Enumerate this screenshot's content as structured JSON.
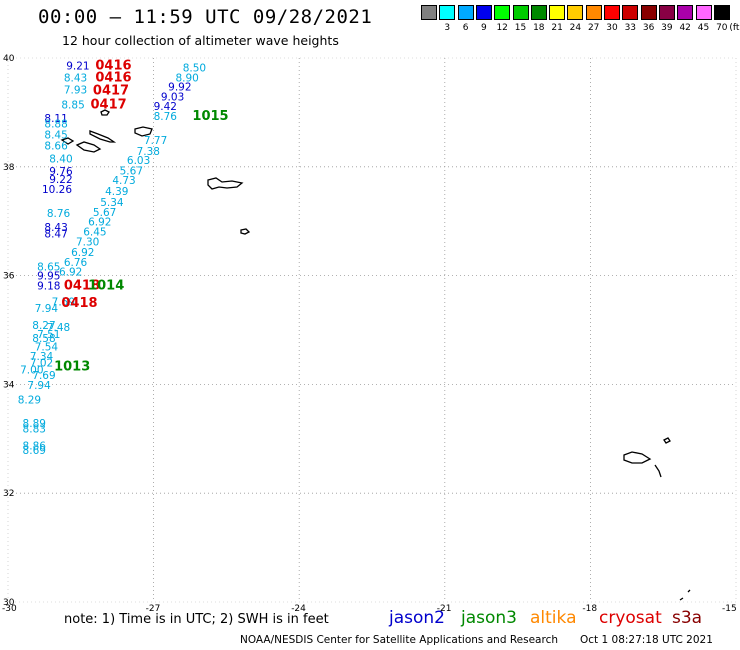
{
  "title": "00:00 – 11:59 UTC 09/28/2021",
  "subtitle": "12 hour collection of altimeter wave heights",
  "legend": {
    "unit": "(ft)",
    "items": [
      {
        "label": "",
        "color": "#808080"
      },
      {
        "label": "3",
        "color": "#00ffff"
      },
      {
        "label": "6",
        "color": "#00aaff"
      },
      {
        "label": "9",
        "color": "#0000ee"
      },
      {
        "label": "12",
        "color": "#00ff00"
      },
      {
        "label": "15",
        "color": "#00cc00"
      },
      {
        "label": "18",
        "color": "#008800"
      },
      {
        "label": "21",
        "color": "#ffff00"
      },
      {
        "label": "24",
        "color": "#ffcc00"
      },
      {
        "label": "27",
        "color": "#ff8800"
      },
      {
        "label": "30",
        "color": "#ff0000"
      },
      {
        "label": "33",
        "color": "#cc0000"
      },
      {
        "label": "36",
        "color": "#880000"
      },
      {
        "label": "39",
        "color": "#880044"
      },
      {
        "label": "42",
        "color": "#aa00aa"
      },
      {
        "label": "45",
        "color": "#ff66ff"
      },
      {
        "label": "70",
        "color": "#000000"
      }
    ]
  },
  "axes": {
    "lat_labels": [
      "40",
      "38",
      "36",
      "34",
      "32",
      "30"
    ],
    "lon_labels": [
      "-30",
      "-27",
      "-24",
      "-21",
      "-18",
      "-15"
    ]
  },
  "colors": {
    "jason2": "#0000cc",
    "jason3": "#008800",
    "altika": "#ff8800",
    "cryosat": "#dd0000",
    "s3a": "#880000",
    "light": "#00aadd"
  },
  "readings": [
    {
      "t": "9.21",
      "lon": -28.8,
      "lat": 39.79,
      "c": "jason2"
    },
    {
      "t": "8.43",
      "lon": -28.85,
      "lat": 39.57,
      "c": "light"
    },
    {
      "t": "7.93",
      "lon": -28.85,
      "lat": 39.35,
      "c": "light"
    },
    {
      "t": "8.85",
      "lon": -28.9,
      "lat": 39.07,
      "c": "light"
    },
    {
      "t": "8.11",
      "lon": -29.25,
      "lat": 38.82,
      "c": "jason2"
    },
    {
      "t": "8.88",
      "lon": -29.25,
      "lat": 38.72,
      "c": "light"
    },
    {
      "t": "8.45",
      "lon": -29.25,
      "lat": 38.52,
      "c": "light"
    },
    {
      "t": "8.66",
      "lon": -29.25,
      "lat": 38.32,
      "c": "light"
    },
    {
      "t": "8.50",
      "lon": -26.4,
      "lat": 39.75,
      "c": "light"
    },
    {
      "t": "8.90",
      "lon": -26.55,
      "lat": 39.57,
      "c": "light"
    },
    {
      "t": "9.92",
      "lon": -26.7,
      "lat": 39.4,
      "c": "jason2"
    },
    {
      "t": "9.03",
      "lon": -26.85,
      "lat": 39.22,
      "c": "jason2"
    },
    {
      "t": "9.42",
      "lon": -27,
      "lat": 39.04,
      "c": "jason2"
    },
    {
      "t": "8.76",
      "lon": -27,
      "lat": 38.86,
      "c": "light"
    },
    {
      "t": "7.77",
      "lon": -27.2,
      "lat": 38.42,
      "c": "light"
    },
    {
      "t": "7.38",
      "lon": -27.35,
      "lat": 38.22,
      "c": "light"
    },
    {
      "t": "6.03",
      "lon": -27.55,
      "lat": 38.05,
      "c": "light"
    },
    {
      "t": "5.67",
      "lon": -27.7,
      "lat": 37.86,
      "c": "light"
    },
    {
      "t": "4.73",
      "lon": -27.85,
      "lat": 37.68,
      "c": "light"
    },
    {
      "t": "4.39",
      "lon": -28,
      "lat": 37.48,
      "c": "light"
    },
    {
      "t": "5.34",
      "lon": -28.1,
      "lat": 37.28,
      "c": "light"
    },
    {
      "t": "5.67",
      "lon": -28.25,
      "lat": 37.1,
      "c": "light"
    },
    {
      "t": "6.92",
      "lon": -28.35,
      "lat": 36.92,
      "c": "light"
    },
    {
      "t": "6.45",
      "lon": -28.45,
      "lat": 36.74,
      "c": "light"
    },
    {
      "t": "7.30",
      "lon": -28.6,
      "lat": 36.55,
      "c": "light"
    },
    {
      "t": "6.92",
      "lon": -28.7,
      "lat": 36.36,
      "c": "light"
    },
    {
      "t": "6.76",
      "lon": -28.85,
      "lat": 36.18,
      "c": "light"
    },
    {
      "t": "6.92",
      "lon": -28.95,
      "lat": 36.0,
      "c": "light"
    },
    {
      "t": "8.40",
      "lon": -29.15,
      "lat": 38.08,
      "c": "light"
    },
    {
      "t": "9.76",
      "lon": -29.15,
      "lat": 37.85,
      "c": "jason2"
    },
    {
      "t": "9.22",
      "lon": -29.15,
      "lat": 37.7,
      "c": "jason2"
    },
    {
      "t": "10.26",
      "lon": -29.3,
      "lat": 37.52,
      "c": "jason2"
    },
    {
      "t": "8.76",
      "lon": -29.2,
      "lat": 37.08,
      "c": "light"
    },
    {
      "t": "8.43",
      "lon": -29.25,
      "lat": 36.82,
      "c": "jason2"
    },
    {
      "t": "8.47",
      "lon": -29.25,
      "lat": 36.7,
      "c": "jason2"
    },
    {
      "t": "8.65",
      "lon": -29.4,
      "lat": 36.09,
      "c": "light"
    },
    {
      "t": "9.95",
      "lon": -29.4,
      "lat": 35.93,
      "c": "jason2"
    },
    {
      "t": "9.18",
      "lon": -29.4,
      "lat": 35.74,
      "c": "jason2"
    },
    {
      "t": "7.94",
      "lon": -29.45,
      "lat": 35.33,
      "c": "light"
    },
    {
      "t": "7.59",
      "lon": -29.1,
      "lat": 35.45,
      "c": "light"
    },
    {
      "t": "7.48",
      "lon": -29.2,
      "lat": 34.98,
      "c": "light"
    },
    {
      "t": "8.27",
      "lon": -29.5,
      "lat": 35.02,
      "c": "light"
    },
    {
      "t": "7.51",
      "lon": -29.4,
      "lat": 34.85,
      "c": "light"
    },
    {
      "t": "8.58",
      "lon": -29.5,
      "lat": 34.78,
      "c": "light"
    },
    {
      "t": "7.54",
      "lon": -29.45,
      "lat": 34.62,
      "c": "light"
    },
    {
      "t": "7.34",
      "lon": -29.55,
      "lat": 34.45,
      "c": "light"
    },
    {
      "t": "7.02",
      "lon": -29.55,
      "lat": 34.33,
      "c": "light"
    },
    {
      "t": "7.00",
      "lon": -29.75,
      "lat": 34.2,
      "c": "light"
    },
    {
      "t": "7.69",
      "lon": -29.5,
      "lat": 34.1,
      "c": "light"
    },
    {
      "t": "7.94",
      "lon": -29.6,
      "lat": 33.92,
      "c": "light"
    },
    {
      "t": "8.29",
      "lon": -29.8,
      "lat": 33.65,
      "c": "light"
    },
    {
      "t": "8.89",
      "lon": -29.7,
      "lat": 33.22,
      "c": "light"
    },
    {
      "t": "8.83",
      "lon": -29.7,
      "lat": 33.12,
      "c": "light"
    },
    {
      "t": "8.86",
      "lon": -29.7,
      "lat": 32.8,
      "c": "light"
    },
    {
      "t": "8.69",
      "lon": -29.7,
      "lat": 32.72,
      "c": "light"
    }
  ],
  "passes": [
    {
      "t": "0416",
      "lon": -28.2,
      "lat": 39.79,
      "c": "cryosat"
    },
    {
      "t": "0416",
      "lon": -28.2,
      "lat": 39.57,
      "c": "cryosat"
    },
    {
      "t": "0417",
      "lon": -28.25,
      "lat": 39.33,
      "c": "cryosat"
    },
    {
      "t": "0417",
      "lon": -28.3,
      "lat": 39.07,
      "c": "cryosat"
    },
    {
      "t": "1015",
      "lon": -26.2,
      "lat": 38.86,
      "c": "jason3"
    },
    {
      "t": "0418",
      "lon": -28.85,
      "lat": 35.74,
      "c": "cryosat"
    },
    {
      "t": "0418",
      "lon": -28.9,
      "lat": 35.42,
      "c": "cryosat"
    },
    {
      "t": "1014",
      "lon": -28.35,
      "lat": 35.74,
      "c": "jason3"
    },
    {
      "t": "1013",
      "lon": -29.05,
      "lat": 34.26,
      "c": "jason3"
    }
  ],
  "note": "note:  1) Time is in UTC; 2) SWH is in feet",
  "satellites": [
    {
      "name": "jason2",
      "color": "#0000cc"
    },
    {
      "name": "jason3",
      "color": "#008800"
    },
    {
      "name": "altika",
      "color": "#ff8800"
    },
    {
      "name": "cryosat",
      "color": "#dd0000"
    },
    {
      "name": "s3a",
      "color": "#880000"
    }
  ],
  "credit": "NOAA/NESDIS Center for Satellite Applications and Research",
  "timestamp": "Oct  1 08:27:18 UTC 2021"
}
